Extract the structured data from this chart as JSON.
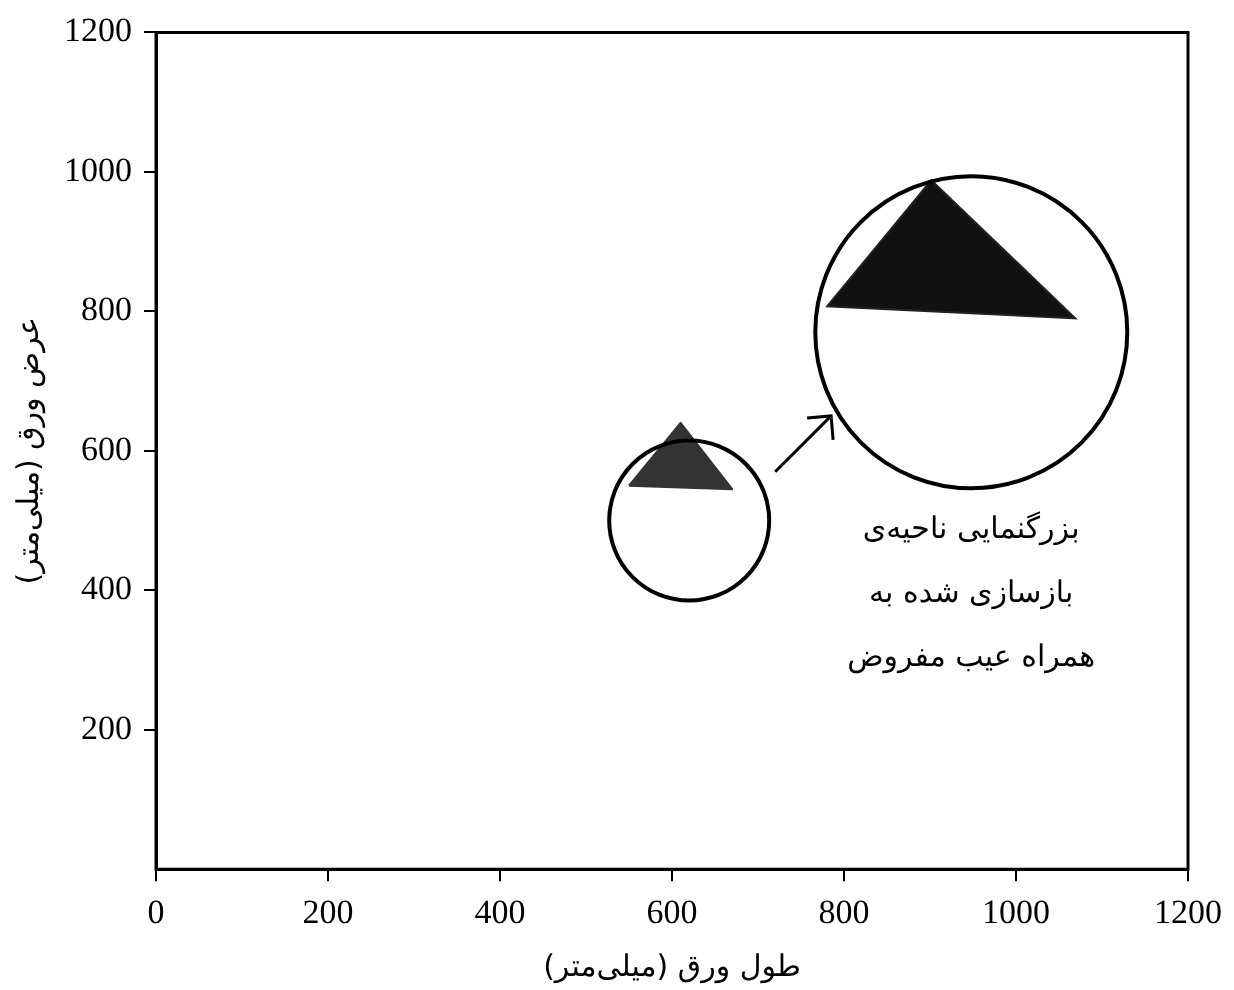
{
  "chart_data": {
    "type": "area",
    "xlabel": "طول ورق (میلی‌متر)",
    "ylabel": "عرض ورق (میلی‌متر)",
    "series": [
      {
        "color": "#333333",
        "x": [
          550,
          610,
          670,
          550
        ],
        "values": [
          550,
          640,
          545,
          550
        ]
      }
    ],
    "xlim": [
      0,
      1200
    ],
    "ylim": [
      0,
      1200
    ],
    "xticks": [
      0,
      200,
      400,
      600,
      800,
      1000,
      1200
    ],
    "yticks": [
      200,
      400,
      600,
      800,
      1000,
      1200
    ],
    "grid": false,
    "legend": false,
    "marker": "none",
    "annotations": [
      "بزرگنمایی ناحیه‌ی\nبازسازی شده به\nهمراه عیب مفروض"
    ]
  }
}
